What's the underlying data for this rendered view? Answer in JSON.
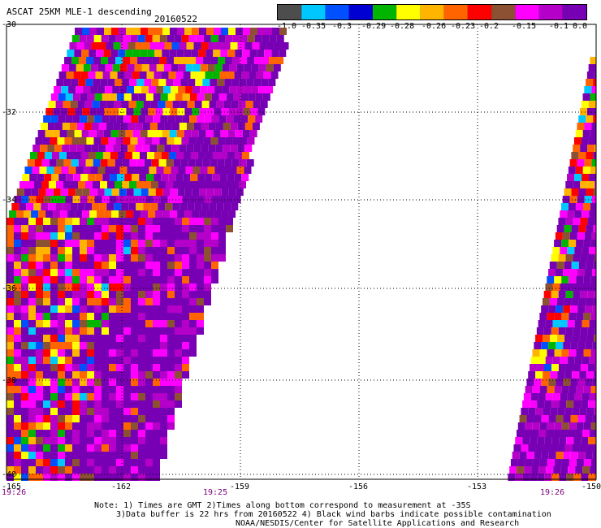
{
  "header": {
    "title": "ASCAT 25KM MLE-1 descending",
    "date": "20160522"
  },
  "colorbar": {
    "colors": [
      "#4d4d4d",
      "#00c8ff",
      "#0050ff",
      "#0000d2",
      "#00b400",
      "#ffff00",
      "#ffb400",
      "#ff6400",
      "#ff0000",
      "#8c5032",
      "#ff00ff",
      "#b400c8",
      "#7800b4"
    ],
    "labels": [
      "-1.0",
      "-0.35",
      "-0.3",
      "-0.29",
      "-0.28",
      "-0.26",
      "-0.23",
      "-0.2",
      "-0.15",
      "-0.1",
      "0.0"
    ]
  },
  "axes": {
    "lat_labels": [
      "-30",
      "-32",
      "-34",
      "-36",
      "-38",
      "-40"
    ],
    "lon_labels": [
      "-165",
      "-162",
      "-159",
      "-156",
      "-153",
      "-150"
    ],
    "time_labels": [
      "19:26",
      "19:25",
      "19:26"
    ]
  },
  "notes": {
    "line1": "Note: 1) Times are GMT 2)Times along bottom correspond to measurement at -35S",
    "line2": "3)Data buffer is 22 hrs from 20160522 4) Black wind barbs indicate possible contamination",
    "line3": "NOAA/NESDIS/Center for Satellite Applications and Research"
  }
}
